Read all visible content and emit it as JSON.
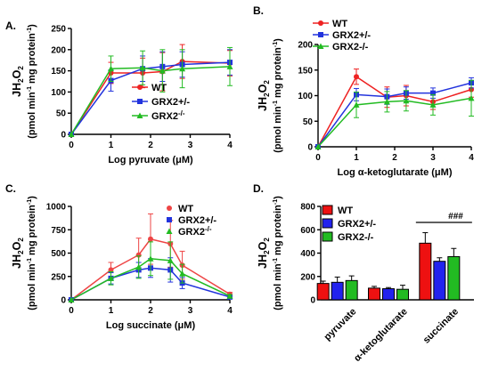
{
  "chart_data": [
    {
      "panel": "A.",
      "type": "line",
      "xlabel": "Log pyruvate (μM)",
      "ylabel_top": "JH2O2",
      "ylabel_bottom": "(pmol min-1 mg protein-1)",
      "xlim": [
        0,
        4
      ],
      "ylim": [
        0,
        250
      ],
      "xticks": [
        0,
        1,
        2,
        3,
        4
      ],
      "yticks": [
        0,
        50,
        100,
        150,
        200,
        250
      ],
      "legend_position": "right",
      "legend_style": "line",
      "series": [
        {
          "name": "WT",
          "color": "#ee2222",
          "marker": "circle",
          "x": [
            0,
            1,
            1.8,
            2.3,
            2.8,
            4
          ],
          "y": [
            0,
            145,
            145,
            148,
            172,
            168
          ],
          "err": [
            0,
            25,
            35,
            45,
            40,
            30
          ]
        },
        {
          "name": "GRX2+/-",
          "color": "#2233dd",
          "marker": "square",
          "x": [
            0,
            1,
            1.8,
            2.3,
            2.8,
            4
          ],
          "y": [
            0,
            127,
            155,
            160,
            165,
            170
          ],
          "err": [
            0,
            25,
            30,
            35,
            30,
            30
          ]
        },
        {
          "name": "GRX2-/-",
          "color": "#22bb22",
          "marker": "triangle",
          "x": [
            0,
            1,
            1.8,
            2.3,
            2.8,
            4
          ],
          "y": [
            0,
            155,
            157,
            150,
            155,
            160
          ],
          "err": [
            0,
            30,
            40,
            50,
            45,
            45
          ]
        }
      ]
    },
    {
      "panel": "B.",
      "type": "line",
      "xlabel": "Log α-ketoglutarate (μM)",
      "ylabel_top": "JH2O2",
      "ylabel_bottom": "(pmol min-1 mg protein-1)",
      "xlim": [
        0,
        4
      ],
      "ylim": [
        0,
        200
      ],
      "xticks": [
        0,
        1,
        2,
        3,
        4
      ],
      "yticks": [
        0,
        50,
        100,
        150,
        200
      ],
      "legend_position": "top-left",
      "legend_style": "line",
      "series": [
        {
          "name": "WT",
          "color": "#ee2222",
          "marker": "circle",
          "x": [
            0,
            1,
            1.8,
            2.3,
            3,
            4
          ],
          "y": [
            0,
            137,
            97,
            100,
            88,
            112
          ],
          "err": [
            0,
            15,
            20,
            20,
            15,
            15
          ]
        },
        {
          "name": "GRX2+/-",
          "color": "#2233dd",
          "marker": "square",
          "x": [
            0,
            1,
            1.8,
            2.3,
            3,
            4
          ],
          "y": [
            0,
            102,
            98,
            105,
            105,
            125
          ],
          "err": [
            0,
            12,
            15,
            12,
            10,
            10
          ]
        },
        {
          "name": "GRX2-/-",
          "color": "#22bb22",
          "marker": "triangle",
          "x": [
            0,
            1,
            1.8,
            2.3,
            3,
            4
          ],
          "y": [
            0,
            82,
            88,
            90,
            82,
            95
          ],
          "err": [
            0,
            25,
            20,
            20,
            20,
            35
          ]
        }
      ]
    },
    {
      "panel": "C.",
      "type": "line",
      "xlabel": "Log succinate (μM)",
      "ylabel_top": "JH2O2",
      "ylabel_bottom": "(pmol min-1 mg protein-1)",
      "xlim": [
        0,
        4
      ],
      "ylim": [
        0,
        1000
      ],
      "xticks": [
        0,
        1,
        2,
        3,
        4
      ],
      "yticks": [
        0,
        250,
        500,
        750,
        1000
      ],
      "legend_position": "top-right",
      "legend_style": "marker",
      "series": [
        {
          "name": "WT",
          "color": "#ee4444",
          "marker": "circle",
          "x": [
            0,
            1,
            1.7,
            2,
            2.5,
            2.8,
            4
          ],
          "y": [
            0,
            320,
            480,
            650,
            600,
            370,
            60
          ],
          "err": [
            0,
            80,
            180,
            270,
            250,
            150,
            20
          ]
        },
        {
          "name": "GRX2+/-",
          "color": "#2233dd",
          "marker": "square",
          "x": [
            0,
            1,
            1.7,
            2,
            2.5,
            2.8,
            4
          ],
          "y": [
            0,
            230,
            320,
            340,
            320,
            180,
            30
          ],
          "err": [
            0,
            60,
            80,
            100,
            130,
            60,
            10
          ]
        },
        {
          "name": "GRX2-/-",
          "color": "#22bb22",
          "marker": "triangle",
          "x": [
            0,
            1,
            1.7,
            2,
            2.5,
            2.8,
            4
          ],
          "y": [
            0,
            230,
            350,
            440,
            420,
            280,
            40
          ],
          "err": [
            0,
            70,
            120,
            180,
            200,
            100,
            15
          ]
        }
      ]
    },
    {
      "panel": "D.",
      "type": "bar",
      "categories": [
        "pyruvate",
        "α-ketoglutarate",
        "succinate"
      ],
      "ylabel_top": "JH2O2",
      "ylabel_bottom": "(pmol min-1 mg protein-1)",
      "ylim": [
        0,
        800
      ],
      "yticks": [
        0,
        200,
        400,
        600,
        800
      ],
      "legend_position": "top-left",
      "annotation": "###",
      "series": [
        {
          "name": "WT",
          "color": "#ee1111",
          "values": [
            140,
            100,
            485
          ],
          "err": [
            20,
            15,
            90
          ]
        },
        {
          "name": "GRX2+/-",
          "color": "#2222ee",
          "values": [
            150,
            95,
            330
          ],
          "err": [
            45,
            10,
            30
          ]
        },
        {
          "name": "GRX2-/-",
          "color": "#22bb22",
          "values": [
            165,
            90,
            370
          ],
          "err": [
            40,
            35,
            70
          ]
        }
      ]
    }
  ]
}
